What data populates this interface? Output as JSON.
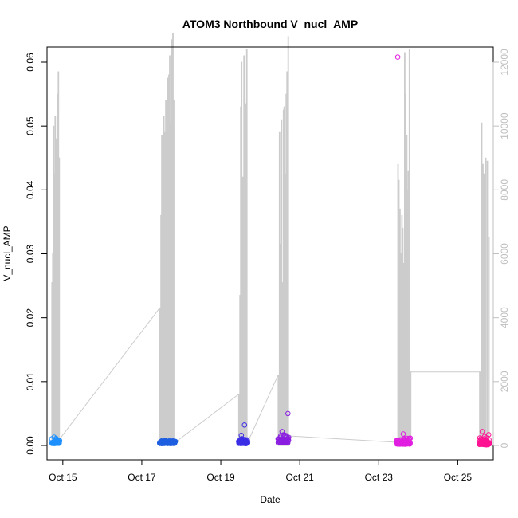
{
  "chart_data": {
    "type": "scatter",
    "title": "ATOM3 Northbound V_nucl_AMP",
    "xlabel": "Date",
    "ylabel": "V_nucl_AMP",
    "x_tick_labels": [
      "Oct 15",
      "Oct 17",
      "Oct 19",
      "Oct 21",
      "Oct 23",
      "Oct 25"
    ],
    "x_tick_days": [
      15,
      17,
      19,
      21,
      23,
      25
    ],
    "xlim_days": [
      14.6,
      25.9
    ],
    "ylim": [
      0,
      0.06
    ],
    "y_ticks": [
      0,
      0.01,
      0.02,
      0.03,
      0.04,
      0.05,
      0.06
    ],
    "y_tick_labels": [
      "0.00",
      "0.01",
      "0.02",
      "0.03",
      "0.04",
      "0.05",
      "0.06"
    ],
    "y2lim": [
      0,
      12000
    ],
    "y2_ticks": [
      0,
      2000,
      4000,
      6000,
      8000,
      10000,
      12000
    ],
    "y2_tick_labels": [
      "0",
      "2000",
      "4000",
      "6000",
      "8000",
      "10000",
      "12000"
    ],
    "grid": false,
    "secondary_series": {
      "color": "#cccccc",
      "points": [
        [
          14.72,
          5100
        ],
        [
          14.74,
          6000
        ],
        [
          14.76,
          10000
        ],
        [
          14.78,
          8500
        ],
        [
          14.8,
          10300
        ],
        [
          14.82,
          9600
        ],
        [
          14.84,
          4000
        ],
        [
          14.86,
          11000
        ],
        [
          14.88,
          11700
        ],
        [
          14.9,
          9000
        ],
        [
          14.92,
          200
        ],
        [
          17.45,
          4300
        ],
        [
          17.48,
          7200
        ],
        [
          17.5,
          9700
        ],
        [
          17.53,
          2400
        ],
        [
          17.55,
          10300
        ],
        [
          17.58,
          9800
        ],
        [
          17.6,
          10800
        ],
        [
          17.63,
          6500
        ],
        [
          17.65,
          11500
        ],
        [
          17.68,
          11600
        ],
        [
          17.7,
          12200
        ],
        [
          17.72,
          10100
        ],
        [
          17.75,
          12700
        ],
        [
          17.78,
          12900
        ],
        [
          17.8,
          10800
        ],
        [
          17.85,
          100
        ],
        [
          19.45,
          1600
        ],
        [
          19.48,
          4700
        ],
        [
          19.5,
          10600
        ],
        [
          19.52,
          12000
        ],
        [
          19.55,
          8400
        ],
        [
          19.58,
          12200
        ],
        [
          19.6,
          3200
        ],
        [
          19.63,
          10700
        ],
        [
          19.65,
          12400
        ],
        [
          19.68,
          100
        ],
        [
          20.45,
          2200
        ],
        [
          20.48,
          9800
        ],
        [
          20.5,
          6300
        ],
        [
          20.53,
          10200
        ],
        [
          20.55,
          5100
        ],
        [
          20.58,
          10500
        ],
        [
          20.6,
          10600
        ],
        [
          20.63,
          8500
        ],
        [
          20.65,
          11000
        ],
        [
          20.67,
          11700
        ],
        [
          20.7,
          12800
        ],
        [
          20.72,
          300
        ],
        [
          23.45,
          100
        ],
        [
          23.48,
          8800
        ],
        [
          23.5,
          8300
        ],
        [
          23.53,
          7400
        ],
        [
          23.55,
          6000
        ],
        [
          23.58,
          7200
        ],
        [
          23.6,
          6800
        ],
        [
          23.62,
          5700
        ],
        [
          23.65,
          12300
        ],
        [
          23.67,
          11000
        ],
        [
          23.7,
          9700
        ],
        [
          23.72,
          8000
        ],
        [
          23.74,
          8600
        ],
        [
          23.77,
          12400
        ],
        [
          23.8,
          2300
        ],
        [
          25.55,
          2300
        ],
        [
          25.6,
          10100
        ],
        [
          25.63,
          8800
        ],
        [
          25.66,
          8500
        ],
        [
          25.7,
          9000
        ],
        [
          25.74,
          8900
        ],
        [
          25.78,
          6500
        ],
        [
          25.81,
          100
        ]
      ],
      "connectors": [
        [
          [
            14.92,
            200
          ],
          [
            17.45,
            4300
          ]
        ],
        [
          [
            17.85,
            100
          ],
          [
            19.45,
            1600
          ]
        ],
        [
          [
            19.68,
            100
          ],
          [
            20.45,
            2200
          ]
        ],
        [
          [
            20.72,
            300
          ],
          [
            23.45,
            100
          ]
        ],
        [
          [
            23.8,
            2300
          ],
          [
            25.55,
            2300
          ]
        ]
      ]
    },
    "series": [
      {
        "color": "#1e90ff",
        "x_range": [
          14.72,
          14.92
        ],
        "baseline": 0.0003,
        "spread": 0.0009,
        "outliers": [
          [
            14.78,
            0.0013
          ],
          [
            14.83,
            0.0011
          ]
        ]
      },
      {
        "color": "#1f5fe0",
        "x_range": [
          17.45,
          17.85
        ],
        "baseline": 0.0003,
        "spread": 0.0008,
        "outliers": []
      },
      {
        "color": "#3b2ee6",
        "x_range": [
          19.45,
          19.68
        ],
        "baseline": 0.0003,
        "spread": 0.0012,
        "outliers": [
          [
            19.6,
            0.0032
          ],
          [
            19.52,
            0.0016
          ]
        ]
      },
      {
        "color": "#8a1ee0",
        "x_range": [
          20.45,
          20.72
        ],
        "baseline": 0.0004,
        "spread": 0.0016,
        "outliers": [
          [
            20.7,
            0.005
          ],
          [
            20.55,
            0.0022
          ]
        ]
      },
      {
        "color": "#e01ee0",
        "x_range": [
          23.45,
          23.8
        ],
        "baseline": 0.0002,
        "spread": 0.0012,
        "outliers": [
          [
            23.48,
            0.0608
          ],
          [
            23.62,
            0.0018
          ]
        ]
      },
      {
        "color": "#ff1493",
        "x_range": [
          25.55,
          25.81
        ],
        "baseline": 0.0001,
        "spread": 0.002,
        "outliers": [
          [
            25.62,
            0.0022
          ]
        ]
      }
    ]
  }
}
